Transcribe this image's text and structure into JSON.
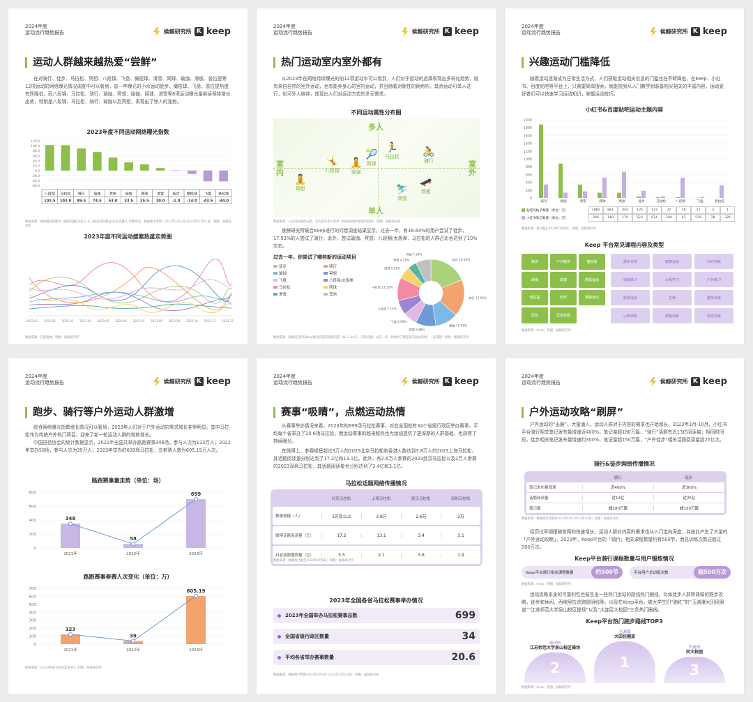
{
  "header": {
    "year": "2024年度",
    "subtitle": "运动流行趋势报告",
    "brand": "侯鲸研究所",
    "logo_letter": "K",
    "logo_name": "keep"
  },
  "p1": {
    "title": "运动人群越来越热爱“尝鲜”",
    "para": "在对骑行、徒步、马拉松、冥想、八段锦、飞盘、橄榄球、滑雪、网球、瑜伽、滑板、普拉提等12项运动的网络曝光情况调查中可以看到，前一年曝光的小众运动徒步、橄榄球、飞盘、普拉提热度有所降低，而八段锦、马拉松、骑行、瑜伽、冥想、瑜伽、网球、滑雪等8项运动曝光量继续保持增长态势，特别是八段锦、马拉松、骑行、瑜伽以及冥想，表现出了惊人的涨势。",
    "chart1": {
      "title": "2023年度不同运动网络曝光指数",
      "categories": [
        "八段锦",
        "马拉松",
        "骑行",
        "瑜伽",
        "冥想",
        "瑜伽",
        "网球",
        "滑雪",
        "徒步",
        "橄榄球",
        "飞盘",
        "普拉提"
      ],
      "values": [
        102.5,
        102.0,
        89.5,
        74.5,
        53.0,
        33.5,
        25.5,
        10.0,
        -1.0,
        -14.0,
        -43.5,
        -44.0
      ],
      "value_labels": [
        "102.5",
        "102.0",
        "89.5",
        "74.5",
        "53.0",
        "33.5",
        "25.5",
        "10.0",
        "-1.0",
        "-14.0",
        "-43.5",
        "-44.0"
      ],
      "yticks": [
        "120.0",
        "100.0",
        "80.0",
        "60.0",
        "40.0",
        "20.0",
        "0.0",
        "-20.0",
        "-40.0",
        "-60.0"
      ],
      "positive_color": "#8cc04a",
      "negative_color": "#b79ad6"
    },
    "note1": "数据来源：网络曝光指数为《搜索流量(归总)》与《各运动流量占比(总流量)》计算得出；数据统计周期：2023年1月1日-2023年12月31日；制图：侯鲸研究所",
    "chart2": {
      "title": "2023年度不同运动搜索热度走势图",
      "x": [
        "2023-01",
        "2023-02",
        "2023-03",
        "2023-04",
        "2023-05",
        "2023-06",
        "2023-07",
        "2023-08",
        "2023-09",
        "2023-10",
        "2023-11",
        "2023-12"
      ]
    },
    "note2": "数据来源：百度指数；制图：侯鲸研究所"
  },
  "p2": {
    "title": "热门运动室内室外都有",
    "para": "从2023年在网络持续曝光的前12项运动中可以看到，人们对于运动的选择表现出多样化趋势，既有来自自然的室外运动，也有能养身心的室内运动，并且随着对新性的网络吵，其余运动可单人进行，也可多人结伴，体现出人们对运动方式的多元需求。",
    "quad": {
      "title": "不同运动属性分布图",
      "top": "多人",
      "bottom": "单人",
      "left": "室内",
      "right": "室外",
      "items": [
        "马拉松",
        "骑行",
        "网球",
        "瑜伽",
        "八段锦",
        "冥想",
        "滑雪",
        "滑板"
      ]
    },
    "note1": "数据来源：以运动的属性分类，室内室外定义参考《中国居民体育锻炼指南》；制图：侯鲸研究所",
    "para2": "侯鲸研究所联合Keep进行的问卷调查结果显示，过去一年，有18.64%的用户尝试了徒步，17.93%的人尝试了骑行。此外，尝试瑜伽、冥想、八段锦/太极拳、马拉松的人群占比也达到了10%左右。",
    "pie": {
      "title": "过去一年，你尝试了哪些新的运动项目",
      "legend": [
        "徒步",
        "骑行",
        "瑜伽",
        "冥想",
        "飞盘",
        "八段锦/太极拳",
        "马拉松",
        "网球",
        "滑雪",
        "其他"
      ],
      "values": [
        18.64,
        17.93,
        10.98,
        9.88,
        6.69,
        7.15,
        11.15,
        5.92,
        4.28,
        7.38
      ],
      "labels": [
        "徒步 18.64%",
        "骑行 17.93%",
        "瑜伽 10.98%",
        "冥想 9.88%",
        "飞盘 6.69%",
        "八段锦 7.15%",
        "马拉松 11.15%",
        "网球 5.92%",
        "滑雪 4.28%",
        "其他 7.38%"
      ],
      "colors": [
        "#a9d27a",
        "#f3a36d",
        "#7cb8e8",
        "#6d9bd5",
        "#e2b7e0",
        "#9c86d3",
        "#f28ba0",
        "#f6d36b",
        "#56b3a7",
        "#c0c0c0"
      ]
    },
    "note2": "数据来源：侯鲸研究所&Keep联合完成的调研问卷（N=1,645），问卷问题：过去一年，你尝试了哪些新的运动项目？（多选题）制图：侯鲸研究所"
  },
  "p3": {
    "title": "兴趣运动门槛降低",
    "para": "随着运动逐渐成为日常生活方式，人们获取运动相关信息的门槛也在不断降低，在Keep、小红书、百度贴吧等平台上，只需要简单搜索，就能找到从入门教学到装备购买相关的丰富内容，运动爱好者们可以快速学习运动知识，掌握运动技巧。",
    "chart": {
      "title": "小红书&百度贴吧运动主题内容",
      "categories": [
        "骑行",
        "瑜伽",
        "滑雪",
        "网球",
        "冥想",
        "徒步",
        "马拉松",
        "八段锦",
        "飞盘",
        "普拉提"
      ],
      "series": [
        {
          "name": "贴吧的帖子数量（单位：万）",
          "values": [
            1882,
            881,
            344,
            135,
            133,
            37,
            18,
            17,
            3,
            1
          ],
          "color": "#8cc04a"
        },
        {
          "name": "小红书笔记数量（单位：万）",
          "values": [
            346,
            140,
            170,
            523,
            674,
            184,
            43,
            519,
            28,
            326
          ],
          "color": "#c5b0e2"
        }
      ],
      "yticks": [
        "2000",
        "1800",
        "1600",
        "1400",
        "1200",
        "1000",
        "800",
        "600",
        "400",
        "200",
        "0"
      ]
    },
    "note1": "数据来源：统计截止2024年1月8日；制图：侯鲸研究所",
    "keep_title": "Keep 平台常见课程内容及类型",
    "blocks_left": [
      "跑步",
      "户外健步",
      "健身操",
      "跳绳",
      "瑜伽",
      "燃脂运动",
      "普拉提",
      "形体",
      "舞蹈运动",
      "冥想",
      "冥想自我"
    ],
    "blocks_right": [
      "跑步日常",
      "健康运动",
      "HIIT训练",
      "瑜伽练习",
      "太极学习",
      "户外练习",
      "居家运动",
      "拉伸",
      "塑形训练",
      "心肺训练",
      "燃脂训练",
      "体态训练"
    ],
    "note2": "数据来源：Keep；制图：侯鲸研究所"
  },
  "p4": {
    "title": "跑步、骑行等户外运动人群激增",
    "para": "综合网络曝光指数增长情况可以看到，2023年人们对于户外运动的需求增长非常明显。其中马拉松作为传统户外热门项目，迎来了新一轮运动人群的增势增长。",
    "para2": "中国田径协会的统计数据显示，2021年全国共举办路跑赛事348场，参与人次为123万人；2022年举办58场，参与人次为39万人；2023年举办的699场马拉松，总参赛人数为605.19万人次。",
    "chart1": {
      "title": "路跑赛事量走势（单位：场）",
      "categories": [
        "2021年",
        "2022年",
        "2023年"
      ],
      "values": [
        348,
        58,
        699
      ],
      "yticks": [
        "800",
        "600",
        "400",
        "200",
        "0"
      ]
    },
    "chart2": {
      "title": "路跑赛事参赛人次变化（单位：万）",
      "categories": [
        "2021年",
        "2022年",
        "2023年"
      ],
      "values": [
        123,
        39,
        605.19
      ],
      "value_labels": [
        "123",
        "39",
        "605.19"
      ],
      "yticks": [
        "700",
        "600",
        "500",
        "400",
        "300",
        "200",
        "100",
        "0"
      ]
    },
    "note": "数据来源：《2023中国马拉松蓝皮书》；制图：侯鲸研究所"
  },
  "p5": {
    "title": "赛事“吸睛”，点燃运动热情",
    "para": "从赛事举办情况来看，2023年的699场马拉松赛事，对应全国就有34个省级行政区举办赛事，平均每个省举办了20.6场马拉松，而运动赛事的越来越热也为运动提供了更深厚的人群基础，也获得了持续曝光。",
    "para2": "在微博上，参赛规模超过3万人的2023北京马拉松和香港人数达到3.8万人的2023上海马拉松，其话题阅读量分别达到了17.2亿和13.1亿。此外，有2.6万人参赛的2023武汉马拉松以及2万人参赛的2023深圳马拉松，其话题阅读量也分别达到了3.4亿和3.1亿。",
    "table": {
      "title": "马拉松话题网络传播情况",
      "cols": [
        "北京马拉松",
        "上海马拉松",
        "武汉马拉松",
        "深圳马拉松"
      ],
      "rows": [
        {
          "label": "赛事规模（人）",
          "values": [
            "3万及以上",
            "3.8万",
            "2.6万",
            "2万"
          ]
        },
        {
          "label": "微博话题阅读量（亿）",
          "values": [
            "17.2",
            "13.1",
            "3.4",
            "3.1"
          ]
        },
        {
          "label": "抖音话题播放量（亿）",
          "values": [
            "5.5",
            "2.1",
            "3.6",
            "1.9"
          ]
        }
      ]
    },
    "note1": "数据来源：数据统计截至2024年1月9日；制图：侯鲸研究所",
    "stats_title": "2023年全国各省马拉松赛事举办情况",
    "stats": [
      {
        "label": "2023年全国举办马拉松赛事总数",
        "value": "699"
      },
      {
        "label": "全国省级行政区数量",
        "value": "34"
      },
      {
        "label": "平均各省举办赛事数量",
        "value": "20.6"
      }
    ],
    "note2": "数据来源：数据统计周期2023年1月1日-2023年12月31日；制图：侯鲸研究所"
  },
  "p6": {
    "title": "户外运动攻略“刷屏”",
    "para": "户外运动的“出圈”，大量涌入，运动人群对于内容的需求也开始增长。2023年1月-10月，小红书平台骑行相关笔记发布量增速近400%，笔记量超180万篇，“骑行”话题有近13亿阅读量；相同时间段，徒步相关笔记发布量增速约300%，笔记量超150万篇，“户外徒步”相关话题阅读量超25亿次。",
    "table": {
      "title": "骑行&徒步网络传播情况",
      "cols": [
        "骑行",
        "徒步"
      ],
      "rows": [
        {
          "label": "笔记发布量增速",
          "values": [
            "近400%",
            "近300%"
          ]
        },
        {
          "label": "话题阅读量",
          "values": [
            "近13亿",
            "近25亿"
          ]
        },
        {
          "label": "笔记量",
          "values": [
            "超180万篇",
            "超150万篇"
          ]
        }
      ]
    },
    "note1": "数据来源：数据统计周期为2023年1月-2023年10月；制图：侯鲸研究所",
    "para2": "经历过早期跟随官网的快速增长，运动人群对内容的需求也从入门走向深度，并由此产生了大量的「户外运动攻略」。2023年，Keep平台的「骑行」相关课程数量约有500节，而总训练次数达超过500万次。",
    "keep_title": "Keep平台骑行课程数量与用户锻炼情况",
    "pills": [
      {
        "label": "Keep平台骑行相关课程数量",
        "value": "约500节"
      },
      {
        "label": "平台用户总训练次数",
        "value": "超500万次"
      }
    ],
    "note2": "数据来源：Keep；制图：侯鲸研究所",
    "para3": "运动攻略本身的可靠利性也催生出一些热门运动的路线热门圈线，比如徒步人群所熟知的野步攻略，徒步和休闲、西缩里拉虎跑德阴线等。以及在Keep平台，被大学生们“跑红”的“玉渊潭大田径圈道”“江苏师范大学泉山校区操场”以及“大连民大校园”三条热门圈线。",
    "top3_title": "Keep平台热门跑步路线TOP3",
    "top3": [
      {
        "rank": "1",
        "city": "玉渊潭",
        "name": "大田径圈道"
      },
      {
        "rank": "2",
        "city": "徐州市",
        "name": "江苏师范大学泉山校区操场"
      },
      {
        "rank": "3",
        "city": "大连市",
        "name": "民大校园"
      }
    ],
    "note3": "数据来源：Keep；制图：侯鲸研究所"
  }
}
